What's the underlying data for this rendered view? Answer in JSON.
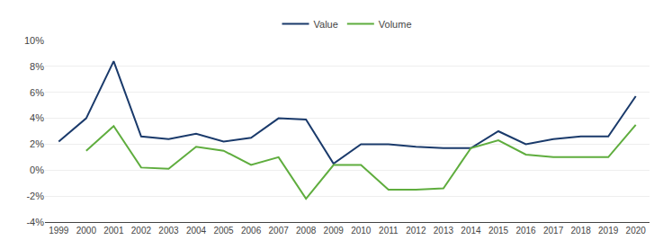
{
  "chart_data": {
    "type": "line",
    "x": [
      1999,
      2000,
      2001,
      2002,
      2003,
      2004,
      2005,
      2006,
      2007,
      2008,
      2009,
      2010,
      2011,
      2012,
      2013,
      2014,
      2015,
      2016,
      2017,
      2018,
      2019,
      2020
    ],
    "series": [
      {
        "name": "Value",
        "color": "#1a3a6b",
        "values": [
          2.2,
          4.0,
          8.4,
          2.6,
          2.4,
          2.8,
          2.2,
          2.5,
          4.0,
          3.9,
          0.5,
          2.0,
          2.0,
          1.8,
          1.7,
          1.7,
          3.0,
          2.0,
          2.4,
          2.6,
          2.6,
          5.7
        ]
      },
      {
        "name": "Volume",
        "color": "#5fad3e",
        "values": [
          null,
          1.5,
          3.4,
          0.2,
          0.1,
          1.8,
          1.5,
          0.4,
          1.0,
          -2.2,
          0.4,
          0.4,
          -1.5,
          -1.5,
          -1.4,
          1.7,
          2.3,
          1.2,
          1.0,
          1.0,
          1.0,
          3.5
        ]
      }
    ],
    "xlim": [
      1998.5,
      2020.5
    ],
    "xticks": [
      1999,
      2000,
      2001,
      2002,
      2003,
      2004,
      2005,
      2006,
      2007,
      2008,
      2009,
      2010,
      2011,
      2012,
      2013,
      2014,
      2015,
      2016,
      2017,
      2018,
      2019,
      2020
    ],
    "ylim": [
      -4,
      10
    ],
    "yticks": [
      {
        "value": -4,
        "label": "-4%"
      },
      {
        "value": -2,
        "label": "-2%"
      },
      {
        "value": 0,
        "label": "0%"
      },
      {
        "value": 2,
        "label": "2%"
      },
      {
        "value": 4,
        "label": "4%"
      },
      {
        "value": 6,
        "label": "6%"
      },
      {
        "value": 8,
        "label": "8%"
      },
      {
        "value": 10,
        "label": "10%"
      }
    ],
    "grid": "y",
    "legend": "top"
  }
}
